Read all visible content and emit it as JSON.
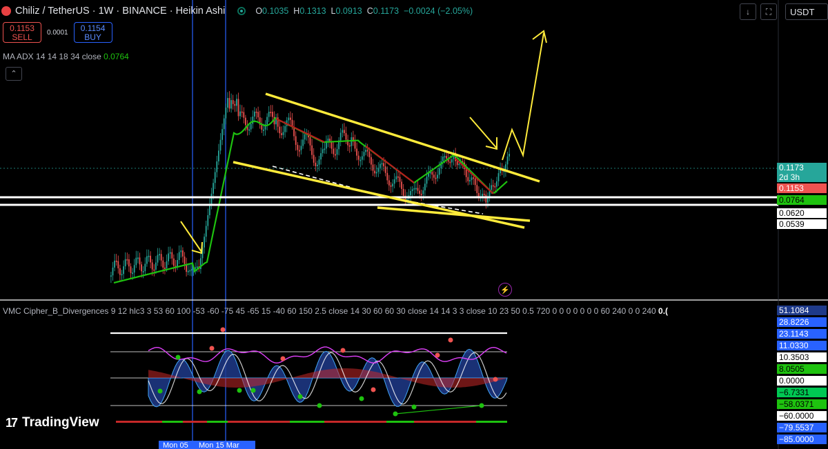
{
  "header": {
    "title": "Chiliz / TetherUS · 1W · BINANCE · Heikin Ashi",
    "ohlc": [
      {
        "k": "O",
        "v": "0.1035"
      },
      {
        "k": "H",
        "v": "0.1313"
      },
      {
        "k": "L",
        "v": "0.0913"
      },
      {
        "k": "C",
        "v": "0.1173"
      },
      {
        "k": "",
        "v": "−0.0024 (−2.05%)"
      }
    ],
    "currency": "USDT"
  },
  "trade": {
    "sell_price": "0.1153",
    "sell_label": "SELL",
    "spread": "0.0001",
    "buy_price": "0.1154",
    "buy_label": "BUY"
  },
  "indicators": {
    "ma_adx": {
      "name": "MA ADX 14 14 18 34 close",
      "value": "0.0764"
    },
    "vmc": {
      "name": "VMC Cipher_B_Divergences 9 12 hlc3 3 53 60 100 -53 -60 -75 45 -65 15 -40 60 150 2.5 close 14 30 60 60 30 close 14 14 3 3 close 10 23 50 0.5 720 0 0 0 0 0 0 0 60 240 0 0 240",
      "value": "0.("
    }
  },
  "price_labels": [
    {
      "text": "0.1173",
      "sub": "2d 3h",
      "bg": "#26a69a",
      "fg": "#ffffff",
      "y": 0.1173
    },
    {
      "text": "0.1153",
      "bg": "#ef5350",
      "fg": "#ffffff",
      "y": 0.1153
    },
    {
      "text": "0.0764",
      "bg": "#1ec20f",
      "fg": "#000000",
      "y": 0.0764
    },
    {
      "text": "0.0620",
      "bg": "#ffffff",
      "fg": "#000000",
      "y": 0.062
    },
    {
      "text": "0.0539",
      "bg": "#ffffff",
      "fg": "#000000",
      "y": 0.0539
    }
  ],
  "osc_labels": [
    {
      "text": "51.1084",
      "bg": "#1e3a8a",
      "fg": "#ffffff"
    },
    {
      "text": "28.8226",
      "bg": "#2962ff",
      "fg": "#ffffff"
    },
    {
      "text": "23.1143",
      "bg": "#2962ff",
      "fg": "#ffffff"
    },
    {
      "text": "11.0330",
      "bg": "#2962ff",
      "fg": "#ffffff"
    },
    {
      "text": "10.3503",
      "bg": "#ffffff",
      "fg": "#000000"
    },
    {
      "text": "8.0505",
      "bg": "#1ec20f",
      "fg": "#000000"
    },
    {
      "text": "0.0000",
      "bg": "#ffffff",
      "fg": "#000000"
    },
    {
      "text": "−6.7331",
      "bg": "#00c853",
      "fg": "#000000"
    },
    {
      "text": "−58.0371",
      "bg": "#1ec20f",
      "fg": "#000000"
    },
    {
      "text": "−60.0000",
      "bg": "#ffffff",
      "fg": "#000000"
    },
    {
      "text": "−79.5537",
      "bg": "#2962ff",
      "fg": "#ffffff"
    },
    {
      "text": "−85.0000",
      "bg": "#2962ff",
      "fg": "#ffffff"
    }
  ],
  "date_tags": [
    {
      "text": "Mon 05"
    },
    {
      "text": "Mon 15 Mar '21"
    }
  ],
  "logo": "TradingView",
  "colors": {
    "up": "#26a69a",
    "down": "#ef5350",
    "ma_up": "#1ec20f",
    "ma_down": "#b71c1c",
    "trend": "#ffeb3b",
    "level": "#ffffff",
    "vline": "#2962ff"
  },
  "chart_data": {
    "type": "candlestick",
    "style": "Heikin Ashi",
    "symbol": "CHZUSDT",
    "interval": "1W",
    "last_close": 0.1173,
    "horizontal_levels": [
      0.062,
      0.0539
    ],
    "ma_adx_value": 0.0764,
    "oscillator_levels": [
      60,
      53,
      0,
      -53,
      -60
    ]
  }
}
